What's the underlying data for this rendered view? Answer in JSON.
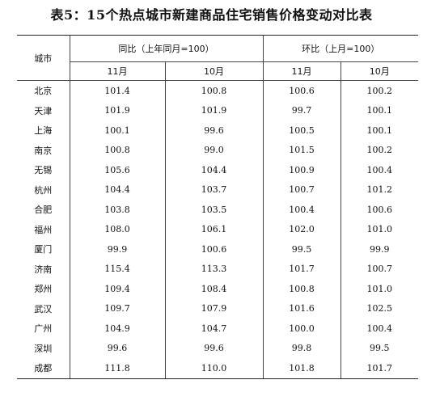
{
  "title": "表5：15个热点城市新建商品住宅销售价格变动对比表",
  "headers": {
    "city": "城市",
    "yoy_group": "同比（上年同月=100）",
    "mom_group": "环比（上月=100）",
    "months": [
      "11月",
      "10月",
      "11月",
      "10月"
    ]
  },
  "rows": [
    {
      "city": "北京",
      "yoy_11": "101.4",
      "yoy_10": "100.8",
      "mom_11": "100.6",
      "mom_10": "100.2"
    },
    {
      "city": "天津",
      "yoy_11": "101.9",
      "yoy_10": "101.9",
      "mom_11": "99.7",
      "mom_10": "100.1"
    },
    {
      "city": "上海",
      "yoy_11": "100.1",
      "yoy_10": "99.6",
      "mom_11": "100.5",
      "mom_10": "100.1"
    },
    {
      "city": "南京",
      "yoy_11": "100.8",
      "yoy_10": "99.0",
      "mom_11": "101.5",
      "mom_10": "100.2"
    },
    {
      "city": "无锡",
      "yoy_11": "105.6",
      "yoy_10": "104.4",
      "mom_11": "100.9",
      "mom_10": "100.4"
    },
    {
      "city": "杭州",
      "yoy_11": "104.4",
      "yoy_10": "103.7",
      "mom_11": "100.7",
      "mom_10": "101.2"
    },
    {
      "city": "合肥",
      "yoy_11": "103.8",
      "yoy_10": "103.5",
      "mom_11": "100.4",
      "mom_10": "100.6"
    },
    {
      "city": "福州",
      "yoy_11": "108.0",
      "yoy_10": "106.1",
      "mom_11": "102.0",
      "mom_10": "101.0"
    },
    {
      "city": "厦门",
      "yoy_11": "99.9",
      "yoy_10": "100.6",
      "mom_11": "99.5",
      "mom_10": "99.9"
    },
    {
      "city": "济南",
      "yoy_11": "115.4",
      "yoy_10": "113.3",
      "mom_11": "101.7",
      "mom_10": "100.7"
    },
    {
      "city": "郑州",
      "yoy_11": "109.4",
      "yoy_10": "108.4",
      "mom_11": "100.8",
      "mom_10": "101.0"
    },
    {
      "city": "武汉",
      "yoy_11": "109.7",
      "yoy_10": "107.9",
      "mom_11": "101.6",
      "mom_10": "102.5"
    },
    {
      "city": "广州",
      "yoy_11": "104.9",
      "yoy_10": "104.7",
      "mom_11": "100.0",
      "mom_10": "100.4"
    },
    {
      "city": "深圳",
      "yoy_11": "99.6",
      "yoy_10": "99.6",
      "mom_11": "99.8",
      "mom_10": "99.5"
    },
    {
      "city": "成都",
      "yoy_11": "111.8",
      "yoy_10": "110.0",
      "mom_11": "101.8",
      "mom_10": "101.7"
    }
  ]
}
